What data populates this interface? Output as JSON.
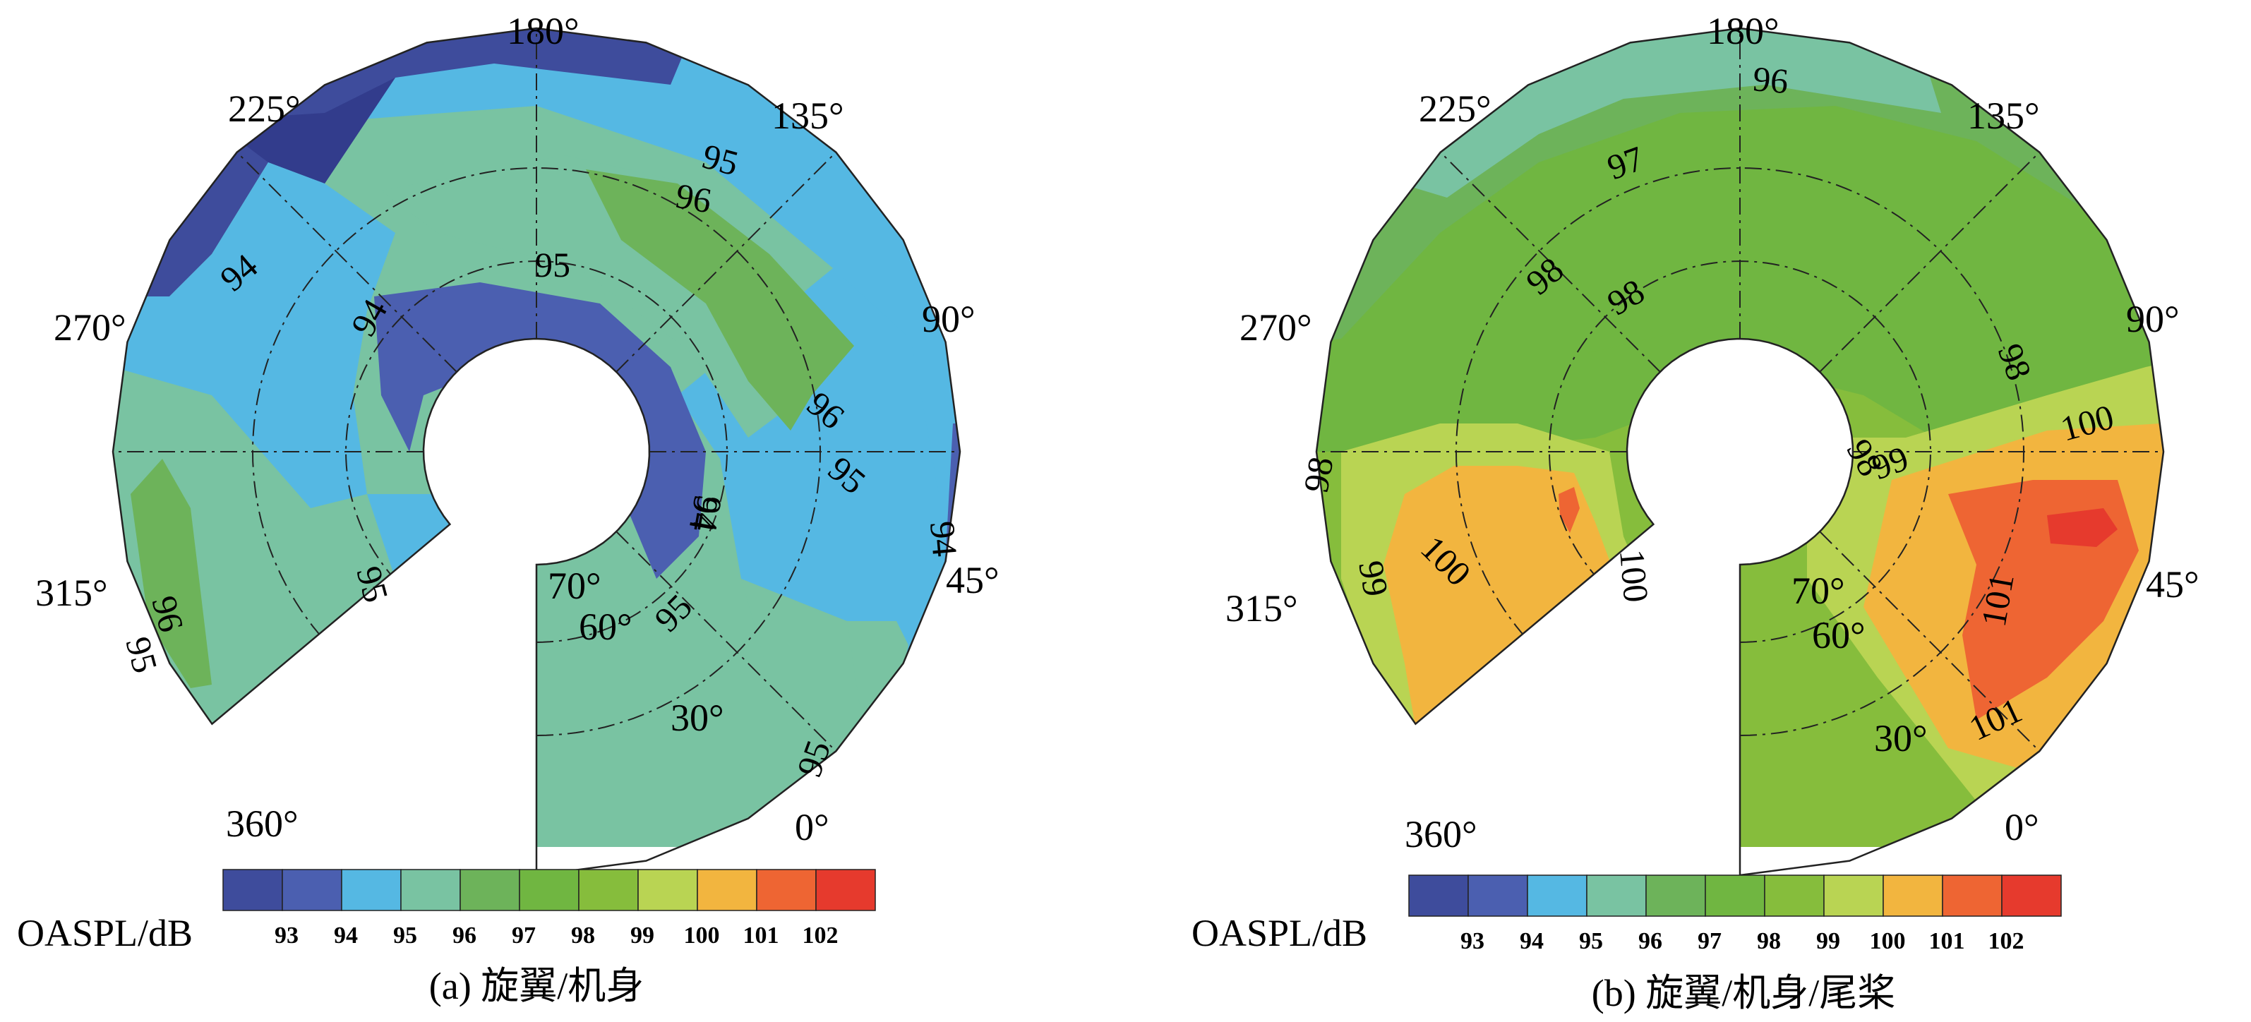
{
  "chart_data": [
    {
      "type": "heatmap",
      "subtype": "polar-contour",
      "caption": "(a) 旋翼/机身",
      "colorbar_label": "OASPL/dB",
      "colorbar_ticks": [
        "93",
        "94",
        "95",
        "96",
        "97",
        "98",
        "99",
        "100",
        "101",
        "102"
      ],
      "angle_labels": [
        "180°",
        "225°",
        "135°",
        "270°",
        "90°",
        "315°",
        "45°",
        "360°",
        "0°",
        "70°",
        "60°",
        "30°"
      ],
      "angular_range_deg": [
        0,
        360
      ],
      "gap_deg": [
        310,
        360
      ],
      "contour_labels": [
        "94",
        "94",
        "95",
        "96",
        "95",
        "94",
        "96",
        "95",
        "95",
        "95",
        "96",
        "94",
        "95",
        "95",
        "94"
      ],
      "regions": [
        {
          "level": 93,
          "location": "upper-left near 225°"
        },
        {
          "level": 94,
          "location": "crescent near hub from 270° to 90° and outer band 225°"
        },
        {
          "level": 95,
          "location": "outer rim 90°–0° and left 270°"
        },
        {
          "level": 96,
          "location": "lower-left 315°–360° and right inner"
        },
        {
          "level": 97,
          "location": "patches near 150° and 315°"
        }
      ]
    },
    {
      "type": "heatmap",
      "subtype": "polar-contour",
      "caption": "(b) 旋翼/机身/尾桨",
      "colorbar_label": "OASPL/dB",
      "colorbar_ticks": [
        "93",
        "94",
        "95",
        "96",
        "97",
        "98",
        "99",
        "100",
        "101",
        "102"
      ],
      "angle_labels": [
        "180°",
        "225°",
        "135°",
        "270°",
        "90°",
        "315°",
        "45°",
        "360°",
        "0°",
        "70°",
        "60°",
        "30°"
      ],
      "angular_range_deg": [
        0,
        360
      ],
      "gap_deg": [
        310,
        360
      ],
      "contour_labels": [
        "96",
        "97",
        "98",
        "98",
        "98",
        "98",
        "99",
        "98",
        "99",
        "100",
        "100",
        "100",
        "101",
        "101"
      ],
      "regions": [
        {
          "level": 96,
          "location": "outer rim near 180°–225°"
        },
        {
          "level": 97,
          "location": "outer band upper half"
        },
        {
          "level": 98,
          "location": "upper half inner"
        },
        {
          "level": 99,
          "location": "band around lower left and right"
        },
        {
          "level": 100,
          "location": "lower left 315°–360° and right 0°–60°"
        },
        {
          "level": 101,
          "location": "right lower 30°–45°"
        },
        {
          "level": 102,
          "location": "small spots near 45° and left inner"
        }
      ]
    }
  ],
  "colors": {
    "c93": "#3e4c9c",
    "c94": "#4b5fb0",
    "c95": "#55b8e3",
    "c96": "#79c3a2",
    "c97": "#6db35a",
    "c98": "#70b641",
    "c99": "#86bd3c",
    "c100": "#b9d453",
    "c101": "#f2b53f",
    "c102": "#ee6533",
    "c103": "#e63a2d"
  }
}
